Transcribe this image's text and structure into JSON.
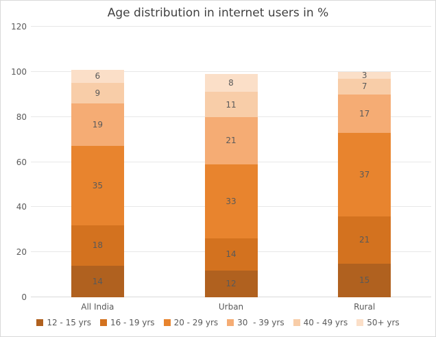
{
  "chart_data": {
    "type": "bar",
    "stacked": true,
    "title": "Age distribution in internet users in %",
    "categories": [
      "All India",
      "Urban",
      "Rural"
    ],
    "series": [
      {
        "name": "12 - 15 yrs",
        "color": "#B0611F",
        "values": [
          14,
          12,
          15
        ]
      },
      {
        "name": "16 - 19 yrs",
        "color": "#D3721F",
        "values": [
          18,
          14,
          21
        ]
      },
      {
        "name": "20 - 29 yrs",
        "color": "#E8842E",
        "values": [
          35,
          33,
          37
        ]
      },
      {
        "name": "30  - 39 yrs",
        "color": "#F5AC74",
        "values": [
          19,
          21,
          17
        ]
      },
      {
        "name": "40 - 49 yrs",
        "color": "#F8CDA8",
        "values": [
          9,
          11,
          7
        ]
      },
      {
        "name": "50+ yrs",
        "color": "#FBDFC8",
        "values": [
          6,
          8,
          3
        ]
      }
    ],
    "ylim": [
      0,
      120
    ],
    "yticks": [
      0,
      20,
      40,
      60,
      80,
      100,
      120
    ],
    "grid": true,
    "data_labels": true,
    "legend_position": "bottom",
    "colors": {
      "title": "#404040",
      "text": "#595959",
      "gridline": "#E7E7E7",
      "axis_line": "#D9D9D9",
      "frame_border": "#D9D9D9",
      "background": "#FFFFFF"
    }
  }
}
